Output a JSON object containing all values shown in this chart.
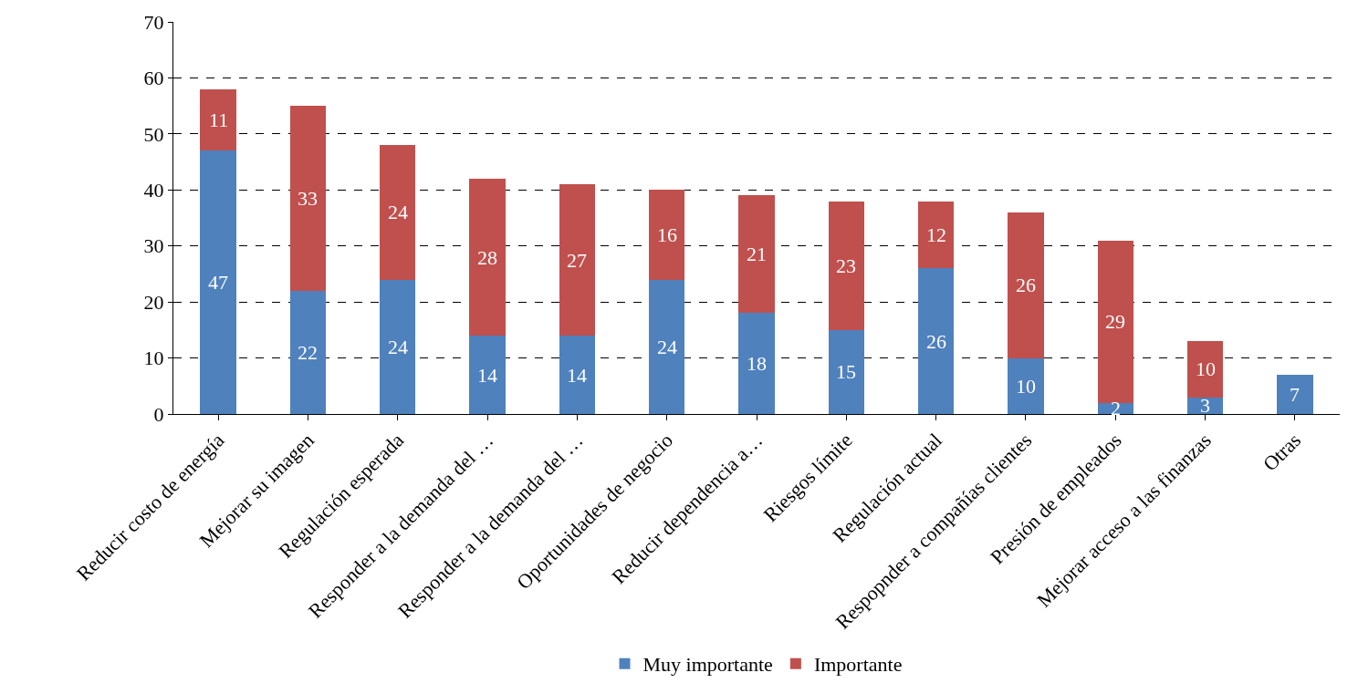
{
  "chart_data": {
    "type": "bar",
    "stacked": true,
    "categories": [
      "Reducir costo de energía",
      "Mejorar su imagen",
      "Regulación esperada",
      "Responder a la demanda del …",
      "Responder a la demanda del …",
      "Oportunidades de negocio",
      "Reducir dependencia a…",
      "Riesgos límite",
      "Regulación actual",
      "Respopnder a compañías clientes",
      "Presión de empleados",
      "Mejorar acceso a las finanzas",
      "Otras"
    ],
    "series": [
      {
        "name": "Muy importante",
        "color": "#4f81bd",
        "values": [
          47,
          22,
          24,
          14,
          14,
          24,
          18,
          15,
          26,
          10,
          2,
          3,
          7
        ]
      },
      {
        "name": "Importante",
        "color": "#c0504d",
        "values": [
          11,
          33,
          24,
          28,
          27,
          16,
          21,
          23,
          12,
          26,
          29,
          10,
          null
        ]
      }
    ],
    "ylim": [
      0,
      70
    ],
    "yticks": [
      0,
      10,
      20,
      30,
      40,
      50,
      60,
      70
    ],
    "grid": "y",
    "legend": "bottom",
    "data_labels": true
  }
}
